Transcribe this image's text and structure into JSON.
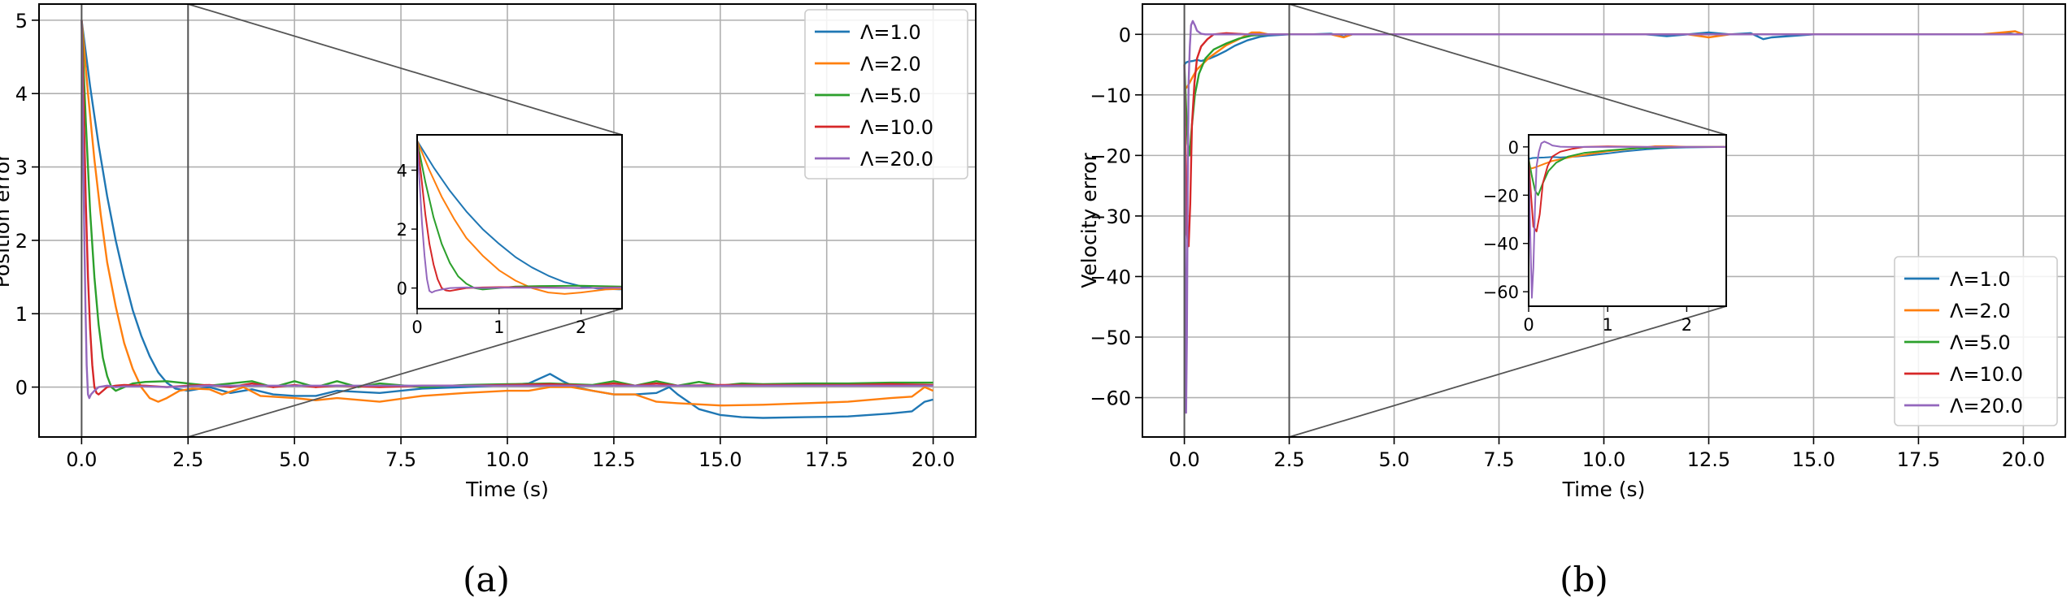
{
  "series_colors": [
    "#1f77b4",
    "#ff7f0e",
    "#2ca02c",
    "#d62728",
    "#9467bd"
  ],
  "chart_data": [
    {
      "type": "line",
      "panel_label": "(a)",
      "xlabel": "Time (s)",
      "ylabel": "Position error",
      "xlim": [
        -1.0,
        21.0
      ],
      "ylim": [
        -0.68,
        5.22
      ],
      "xticks": [
        0.0,
        2.5,
        5.0,
        7.5,
        10.0,
        12.5,
        15.0,
        17.5,
        20.0
      ],
      "xtick_labels": [
        "0.0",
        "2.5",
        "5.0",
        "7.5",
        "10.0",
        "12.5",
        "15.0",
        "17.5",
        "20.0"
      ],
      "yticks": [
        0,
        1,
        2,
        3,
        4,
        5
      ],
      "ytick_labels": [
        "0",
        "1",
        "2",
        "3",
        "4",
        "5"
      ],
      "grid": true,
      "legend_position": "top-right",
      "zoom_region": [
        0,
        2.5
      ],
      "series": [
        {
          "name": "Λ=1.0",
          "x": [
            0,
            0.2,
            0.4,
            0.6,
            0.8,
            1.0,
            1.2,
            1.4,
            1.6,
            1.8,
            2.0,
            2.2,
            2.5,
            3.0,
            3.5,
            4.0,
            4.5,
            5.0,
            5.5,
            6.0,
            7.0,
            8.0,
            9.0,
            10.0,
            10.5,
            11.0,
            11.3,
            11.6,
            12.0,
            12.5,
            13.0,
            13.5,
            13.8,
            14.0,
            14.5,
            15.0,
            15.5,
            16.0,
            17.0,
            18.0,
            19.0,
            19.5,
            19.8,
            20.0
          ],
          "y": [
            5.0,
            4.1,
            3.3,
            2.6,
            2.0,
            1.5,
            1.05,
            0.7,
            0.42,
            0.2,
            0.06,
            -0.02,
            -0.05,
            0.0,
            -0.08,
            -0.03,
            -0.1,
            -0.12,
            -0.12,
            -0.05,
            -0.08,
            -0.02,
            0.0,
            0.03,
            0.05,
            0.18,
            0.08,
            0.0,
            -0.05,
            -0.1,
            -0.1,
            -0.08,
            0.0,
            -0.1,
            -0.3,
            -0.38,
            -0.41,
            -0.42,
            -0.41,
            -0.4,
            -0.36,
            -0.33,
            -0.2,
            -0.17
          ]
        },
        {
          "name": "Λ=2.0",
          "x": [
            0,
            0.15,
            0.3,
            0.45,
            0.6,
            0.8,
            1.0,
            1.2,
            1.4,
            1.6,
            1.8,
            2.0,
            2.3,
            2.6,
            3.0,
            3.3,
            3.8,
            4.2,
            5.0,
            5.5,
            6.0,
            7.0,
            8.0,
            9.0,
            10.0,
            10.5,
            11.0,
            11.5,
            12.0,
            12.5,
            13.0,
            13.5,
            14.0,
            15.0,
            16.0,
            17.0,
            18.0,
            19.0,
            19.5,
            19.8,
            20.0
          ],
          "y": [
            5.0,
            4.0,
            3.1,
            2.35,
            1.7,
            1.1,
            0.6,
            0.25,
            0.0,
            -0.15,
            -0.2,
            -0.15,
            -0.05,
            -0.02,
            -0.03,
            -0.1,
            0.0,
            -0.12,
            -0.15,
            -0.18,
            -0.15,
            -0.2,
            -0.12,
            -0.08,
            -0.05,
            -0.05,
            0.0,
            0.0,
            -0.05,
            -0.1,
            -0.1,
            -0.2,
            -0.22,
            -0.25,
            -0.24,
            -0.22,
            -0.2,
            -0.15,
            -0.13,
            0.0,
            -0.05
          ]
        },
        {
          "name": "Λ=5.0",
          "x": [
            0,
            0.1,
            0.2,
            0.3,
            0.4,
            0.5,
            0.6,
            0.7,
            0.8,
            1.0,
            1.2,
            1.5,
            2.0,
            2.5,
            3.0,
            3.5,
            4.0,
            4.5,
            5.0,
            5.5,
            6.0,
            6.5,
            7.0,
            8.0,
            9.0,
            10.0,
            11.0,
            12.0,
            12.5,
            13.0,
            13.5,
            14.0,
            14.5,
            15.0,
            15.5,
            16.0,
            17.0,
            18.0,
            19.0,
            20.0
          ],
          "y": [
            5.0,
            3.6,
            2.4,
            1.5,
            0.85,
            0.4,
            0.15,
            0.0,
            -0.05,
            0.0,
            0.05,
            0.07,
            0.08,
            0.05,
            0.02,
            0.05,
            0.08,
            0.0,
            0.08,
            0.0,
            0.08,
            0.0,
            0.05,
            0.0,
            0.03,
            0.04,
            0.05,
            0.03,
            0.08,
            0.02,
            0.08,
            0.02,
            0.07,
            0.02,
            0.05,
            0.04,
            0.05,
            0.05,
            0.06,
            0.06
          ]
        },
        {
          "name": "Λ=10.0",
          "x": [
            0,
            0.05,
            0.1,
            0.15,
            0.2,
            0.25,
            0.3,
            0.35,
            0.4,
            0.5,
            0.6,
            0.8,
            1.0,
            1.5,
            2.0,
            2.5,
            3.0,
            3.5,
            4.0,
            4.5,
            5.0,
            5.5,
            6.0,
            7.0,
            8.0,
            9.0,
            10.0,
            11.0,
            12.0,
            12.5,
            13.0,
            13.5,
            14.0,
            15.0,
            16.0,
            17.0,
            18.0,
            19.0,
            20.0
          ],
          "y": [
            5.0,
            3.8,
            2.5,
            1.5,
            0.8,
            0.3,
            0.0,
            -0.08,
            -0.1,
            -0.05,
            0.0,
            0.02,
            0.03,
            0.02,
            0.0,
            0.02,
            0.03,
            0.0,
            0.05,
            0.0,
            0.03,
            0.0,
            0.02,
            0.0,
            0.02,
            0.02,
            0.03,
            0.04,
            0.02,
            0.05,
            0.02,
            0.05,
            0.02,
            0.03,
            0.03,
            0.03,
            0.03,
            0.04,
            0.03
          ]
        },
        {
          "name": "Λ=20.0",
          "x": [
            0,
            0.03,
            0.06,
            0.09,
            0.12,
            0.15,
            0.18,
            0.22,
            0.3,
            0.4,
            0.6,
            0.8,
            1.0,
            1.5,
            2.0,
            2.5,
            3.0,
            4.0,
            5.0,
            6.0,
            7.0,
            8.0,
            9.0,
            10.0,
            11.0,
            12.0,
            13.0,
            14.0,
            15.0,
            16.0,
            17.0,
            18.0,
            19.0,
            20.0
          ],
          "y": [
            5.0,
            3.6,
            2.2,
            1.1,
            0.3,
            -0.1,
            -0.15,
            -0.1,
            -0.05,
            0.0,
            0.02,
            0.0,
            0.01,
            0.01,
            0.0,
            0.01,
            0.02,
            0.02,
            0.02,
            0.02,
            0.02,
            0.02,
            0.02,
            0.02,
            0.02,
            0.02,
            0.02,
            0.02,
            0.02,
            0.02,
            0.02,
            0.02,
            0.02,
            0.02
          ]
        }
      ],
      "inset": {
        "xlim": [
          0,
          2.5
        ],
        "ylim": [
          -0.7,
          5.2
        ],
        "xticks": [
          0,
          1,
          2
        ],
        "xtick_labels": [
          "0",
          "1",
          "2"
        ],
        "yticks": [
          0,
          2,
          4
        ],
        "ytick_labels": [
          "0",
          "2",
          "4"
        ]
      }
    },
    {
      "type": "line",
      "panel_label": "(b)",
      "xlabel": "Time (s)",
      "ylabel": "Velocity error",
      "xlim": [
        -1.0,
        21.0
      ],
      "ylim": [
        -66.5,
        5.0
      ],
      "xticks": [
        0.0,
        2.5,
        5.0,
        7.5,
        10.0,
        12.5,
        15.0,
        17.5,
        20.0
      ],
      "xtick_labels": [
        "0.0",
        "2.5",
        "5.0",
        "7.5",
        "10.0",
        "12.5",
        "15.0",
        "17.5",
        "20.0"
      ],
      "yticks": [
        0,
        -10,
        -20,
        -30,
        -40,
        -50,
        -60
      ],
      "ytick_labels": [
        "0",
        "−10",
        "−20",
        "−30",
        "−40",
        "−50",
        "−60"
      ],
      "grid": true,
      "legend_position": "bottom-right",
      "zoom_region": [
        0,
        2.5
      ],
      "series": [
        {
          "name": "Λ=1.0",
          "x": [
            0,
            0.05,
            0.1,
            0.2,
            0.3,
            0.4,
            0.6,
            0.8,
            1.0,
            1.2,
            1.5,
            1.8,
            2.0,
            2.5,
            3.0,
            3.5,
            3.8,
            4.0,
            5.0,
            6.0,
            7.0,
            8.0,
            9.0,
            10.0,
            11.0,
            11.5,
            12.0,
            12.5,
            13.0,
            13.5,
            13.8,
            14.0,
            15.0,
            16.0,
            17.0,
            18.0,
            19.0,
            19.5,
            19.8,
            20.0
          ],
          "y": [
            -5.0,
            -4.6,
            -4.5,
            -4.4,
            -4.2,
            -4.4,
            -4.0,
            -3.4,
            -2.7,
            -1.9,
            -1.0,
            -0.4,
            -0.2,
            0.0,
            0.0,
            0.1,
            -0.4,
            0.0,
            0.0,
            0.0,
            0.0,
            0.0,
            0.0,
            0.0,
            0.0,
            -0.3,
            0.0,
            0.3,
            0.0,
            0.2,
            -0.8,
            -0.5,
            0.0,
            0.0,
            0.0,
            0.0,
            0.0,
            0.0,
            0.5,
            0.0
          ]
        },
        {
          "name": "Λ=2.0",
          "x": [
            0,
            0.05,
            0.1,
            0.2,
            0.3,
            0.45,
            0.6,
            0.8,
            1.0,
            1.3,
            1.6,
            1.8,
            2.0,
            2.5,
            3.0,
            3.5,
            3.8,
            4.0,
            5.0,
            6.0,
            7.0,
            8.0,
            9.0,
            10.0,
            11.0,
            12.0,
            12.5,
            13.0,
            14.0,
            15.0,
            16.0,
            17.0,
            18.0,
            19.0,
            19.8,
            20.0
          ],
          "y": [
            -9.0,
            -8.8,
            -8.3,
            -7.0,
            -5.8,
            -4.8,
            -3.8,
            -2.8,
            -1.8,
            -0.8,
            0.3,
            0.3,
            0.0,
            0.0,
            0.0,
            0.0,
            -0.5,
            0.0,
            0.0,
            0.0,
            0.0,
            0.0,
            0.0,
            0.0,
            0.0,
            0.0,
            -0.5,
            0.0,
            0.0,
            0.0,
            0.0,
            0.0,
            0.0,
            0.0,
            0.5,
            0.0
          ]
        },
        {
          "name": "Λ=5.0",
          "x": [
            0,
            0.04,
            0.08,
            0.12,
            0.18,
            0.25,
            0.35,
            0.5,
            0.7,
            1.0,
            1.3,
            1.6,
            2.0,
            2.5,
            3.0,
            4.0,
            5.0,
            6.0,
            7.0,
            8.0,
            9.0,
            10.0,
            11.0,
            12.0,
            13.0,
            14.0,
            15.0,
            16.0,
            17.0,
            18.0,
            19.0,
            20.0
          ],
          "y": [
            -5.0,
            -12.0,
            -18.0,
            -20.0,
            -15.0,
            -10.0,
            -6.5,
            -4.0,
            -2.5,
            -1.5,
            -0.7,
            -0.2,
            0.0,
            0.0,
            0.0,
            0.0,
            0.0,
            0.0,
            0.0,
            0.0,
            0.0,
            0.0,
            0.0,
            0.0,
            0.0,
            0.0,
            0.0,
            0.0,
            0.0,
            0.0,
            0.0,
            0.0
          ]
        },
        {
          "name": "Λ=10.0",
          "x": [
            0,
            0.03,
            0.06,
            0.1,
            0.14,
            0.18,
            0.24,
            0.3,
            0.4,
            0.55,
            0.7,
            1.0,
            1.5,
            2.0,
            2.5,
            3.0,
            4.0,
            5.0,
            6.0,
            7.0,
            8.0,
            9.0,
            10.0,
            11.0,
            12.0,
            13.0,
            14.0,
            15.0,
            16.0,
            17.0,
            18.0,
            19.0,
            20.0
          ],
          "y": [
            -5.0,
            -20.0,
            -33.0,
            -35.0,
            -28.0,
            -15.0,
            -8.0,
            -4.0,
            -2.0,
            -0.8,
            0.0,
            0.2,
            0.0,
            0.0,
            0.0,
            0.0,
            0.0,
            0.0,
            0.0,
            0.0,
            0.0,
            0.0,
            0.0,
            0.0,
            0.0,
            0.0,
            0.0,
            0.0,
            0.0,
            0.0,
            0.0,
            0.0,
            0.0
          ]
        },
        {
          "name": "Λ=20.0",
          "x": [
            0,
            0.02,
            0.04,
            0.06,
            0.08,
            0.1,
            0.13,
            0.16,
            0.2,
            0.25,
            0.3,
            0.4,
            0.5,
            0.7,
            1.0,
            1.5,
            2.0,
            2.5,
            3.0,
            4.0,
            5.0,
            6.0,
            7.0,
            8.0,
            9.0,
            10.0,
            11.0,
            12.0,
            13.0,
            14.0,
            15.0,
            16.0,
            17.0,
            18.0,
            19.0,
            20.0
          ],
          "y": [
            -5.0,
            -35.0,
            -62.5,
            -50.0,
            -25.0,
            -8.0,
            -2.0,
            1.5,
            2.2,
            1.5,
            0.6,
            0.1,
            0.0,
            0.0,
            0.0,
            0.0,
            0.0,
            0.0,
            0.0,
            0.0,
            0.0,
            0.0,
            0.0,
            0.0,
            0.0,
            0.0,
            0.0,
            0.0,
            0.0,
            0.0,
            0.0,
            0.0,
            0.0,
            0.0,
            0.0,
            0.0
          ]
        }
      ],
      "inset": {
        "xlim": [
          0,
          2.5
        ],
        "ylim": [
          -66,
          5
        ],
        "xticks": [
          0,
          1,
          2
        ],
        "xtick_labels": [
          "0",
          "1",
          "2"
        ],
        "yticks": [
          0,
          -20,
          -40,
          -60
        ],
        "ytick_labels": [
          "0",
          "−20",
          "−40",
          "−60"
        ]
      }
    }
  ]
}
